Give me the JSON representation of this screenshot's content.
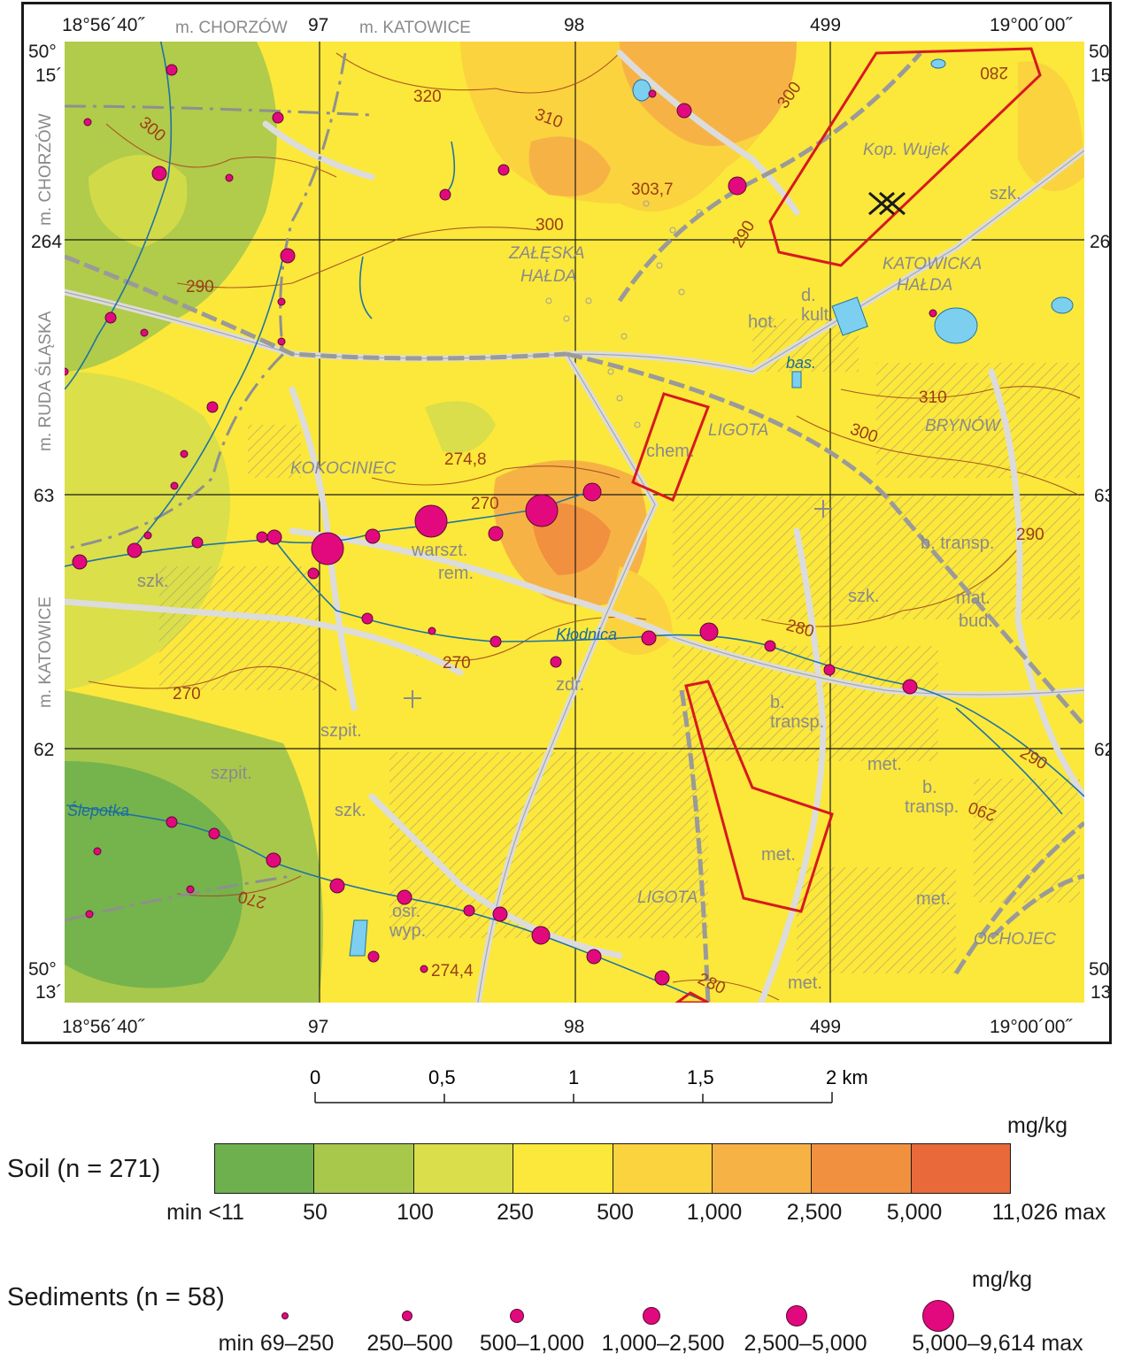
{
  "map": {
    "coords": {
      "top_left": "18°56´40˝",
      "top_right": "19°00´00˝",
      "bottom_left": "18°56´40˝",
      "bottom_right": "19°00´00˝",
      "grid_x": [
        "97",
        "98",
        "499"
      ],
      "grid_y": [
        "264",
        "63",
        "62"
      ],
      "lat_top": [
        "50°",
        "15´"
      ],
      "lat_bottom": [
        "50°",
        "13´"
      ]
    },
    "boundaries": {
      "top_left": "m. CHORZÓW",
      "top_right": "m. KATOWICE",
      "left_top": "m. CHORZÓW",
      "left_mid": "m. RUDA ŚLĄSKA",
      "left_bottom": "m. KATOWICE"
    },
    "places": {
      "zaleska": [
        "ZAŁĘSKA",
        "HAŁDA"
      ],
      "katowicka": [
        "KATOWICKA",
        "HAŁDA"
      ],
      "kop_wujek": "Kop. Wujek",
      "kokociniec": "KOKOCINIEC",
      "ligota_n": "LIGOTA",
      "ligota_s": "LIGOTA",
      "brynow": "BRYNÓW",
      "ochojec": "OCHOJEC"
    },
    "labels": {
      "szk1": "szk.",
      "szk2": "szk.",
      "szk3": "szk.",
      "szk4": "szk.",
      "d_kult": [
        "d.",
        "kult."
      ],
      "hot": "hot.",
      "bas": "bas.",
      "chem": "chem.",
      "warszt": [
        "warszt.",
        "rem."
      ],
      "b_transp1": "b. transp.",
      "mat_bud": [
        "mat.",
        "bud."
      ],
      "zdr": "zdr.",
      "b_transp2": [
        "b.",
        "transp."
      ],
      "szpit1": "szpit.",
      "szpit2": "szpit.",
      "met1": "met.",
      "met2": "met.",
      "met3": "met.",
      "met4": "met.",
      "b_transp3": [
        "b.",
        "transp."
      ],
      "osr_wyp": [
        "osr.",
        "wyp."
      ]
    },
    "rivers": {
      "klodnica": "Kłodnica",
      "slepotka": "Ślepotka"
    },
    "contours": [
      "320",
      "310",
      "300",
      "303,7",
      "300",
      "290",
      "300",
      "280",
      "290",
      "274,8",
      "270",
      "270",
      "270",
      "310",
      "300",
      "290",
      "280",
      "290",
      "290",
      "270",
      "274,4",
      "280"
    ]
  },
  "scalebar": {
    "ticks": [
      "0",
      "0,5",
      "1",
      "1,5",
      "2 km"
    ]
  },
  "legend": {
    "soil_title": "Soil (n = 271)",
    "unit": "mg/kg",
    "soil_classes": [
      {
        "color": "#6fb04e"
      },
      {
        "color": "#a8c84c"
      },
      {
        "color": "#d9de4a"
      },
      {
        "color": "#fbe83a"
      },
      {
        "color": "#fbd33e"
      },
      {
        "color": "#f7b246"
      },
      {
        "color": "#f1903f"
      },
      {
        "color": "#e9693a"
      }
    ],
    "soil_breaks": [
      "min <11",
      "50",
      "100",
      "250",
      "500",
      "1,000",
      "2,500",
      "5,000",
      "11,026 max"
    ],
    "sediment_title": "Sediments (n = 58)",
    "sediment_unit": "mg/kg",
    "sediment_classes": [
      {
        "label": "min 69–250"
      },
      {
        "label": "250–500"
      },
      {
        "label": "500–1,000"
      },
      {
        "label": "1,000–2,500"
      },
      {
        "label": "2,500–5,000"
      },
      {
        "label": "5,000–9,614 max"
      }
    ],
    "sediment_color": "#e2097f"
  }
}
